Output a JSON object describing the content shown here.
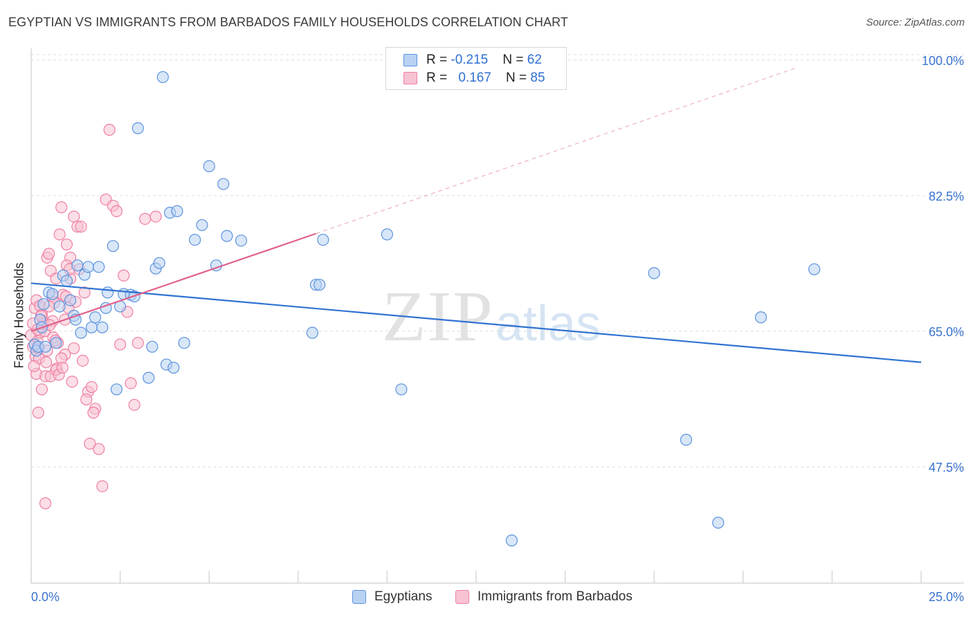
{
  "title": "EGYPTIAN VS IMMIGRANTS FROM BARBADOS FAMILY HOUSEHOLDS CORRELATION CHART",
  "source": "Source: ZipAtlas.com",
  "watermark": {
    "zip": "ZIP",
    "atlas": "atlas"
  },
  "legend_top": {
    "row1": {
      "r_label": "R = ",
      "r_value": "-0.215",
      "n_label": "N = ",
      "n_value": "62"
    },
    "row2": {
      "r_label": "R = ",
      "r_value": "0.167",
      "n_label": "N = ",
      "n_value": "85"
    }
  },
  "colors": {
    "blue_fill": "#b8d2f2",
    "blue_stroke": "#5b93dd",
    "blue_line": "#2f72d2",
    "pink_fill": "#f7c3d2",
    "pink_stroke": "#ee7fa2",
    "pink_line": "#e0608c",
    "axis_text": "#3a73cf",
    "grid": "#dcdcdc"
  },
  "chart_data": {
    "type": "scatter",
    "title": "EGYPTIAN VS IMMIGRANTS FROM BARBADOS FAMILY HOUSEHOLDS CORRELATION CHART",
    "xlabel": "",
    "ylabel": "Family Households",
    "xlim": [
      0,
      25
    ],
    "ylim": [
      32.5,
      101.5
    ],
    "x_tick_labels": [
      "0.0%",
      "25.0%"
    ],
    "y_ticks": [
      47.5,
      65.0,
      82.5,
      100.0
    ],
    "y_tick_labels": [
      "47.5%",
      "65.0%",
      "82.5%",
      "100.0%"
    ],
    "legend": [
      "Egyptians",
      "Immigrants from Barbados"
    ],
    "series": [
      {
        "name": "Egyptians",
        "R": -0.215,
        "N": 62,
        "trend": {
          "x": [
            0,
            25
          ],
          "y": [
            71.2,
            61.0
          ]
        },
        "points": [
          [
            0.1,
            63.3
          ],
          [
            0.15,
            62.5
          ],
          [
            0.2,
            63.0
          ],
          [
            0.25,
            66.5
          ],
          [
            0.3,
            65.5
          ],
          [
            0.35,
            68.5
          ],
          [
            0.5,
            70.0
          ],
          [
            0.6,
            69.8
          ],
          [
            0.7,
            63.5
          ],
          [
            0.8,
            68.2
          ],
          [
            0.9,
            72.2
          ],
          [
            1.0,
            71.5
          ],
          [
            1.1,
            69.0
          ],
          [
            1.2,
            67.0
          ],
          [
            1.3,
            73.5
          ],
          [
            1.4,
            64.8
          ],
          [
            1.5,
            72.3
          ],
          [
            1.6,
            73.3
          ],
          [
            1.7,
            65.5
          ],
          [
            1.8,
            66.8
          ],
          [
            1.9,
            73.3
          ],
          [
            2.0,
            65.5
          ],
          [
            2.1,
            68.0
          ],
          [
            2.15,
            70.0
          ],
          [
            2.3,
            76.0
          ],
          [
            2.4,
            57.5
          ],
          [
            2.5,
            68.2
          ],
          [
            2.6,
            69.8
          ],
          [
            2.8,
            69.7
          ],
          [
            2.9,
            69.5
          ],
          [
            3.0,
            91.2
          ],
          [
            3.3,
            59.0
          ],
          [
            3.4,
            63.0
          ],
          [
            3.5,
            73.1
          ],
          [
            3.6,
            73.8
          ],
          [
            3.7,
            97.8
          ],
          [
            3.8,
            60.7
          ],
          [
            3.9,
            80.3
          ],
          [
            4.0,
            60.3
          ],
          [
            4.1,
            80.5
          ],
          [
            4.3,
            63.5
          ],
          [
            4.6,
            76.8
          ],
          [
            4.8,
            78.7
          ],
          [
            5.0,
            86.3
          ],
          [
            5.2,
            73.5
          ],
          [
            5.4,
            84.0
          ],
          [
            5.5,
            77.3
          ],
          [
            5.9,
            76.7
          ],
          [
            7.9,
            64.8
          ],
          [
            8.0,
            71.0
          ],
          [
            8.1,
            71.0
          ],
          [
            8.2,
            76.8
          ],
          [
            10.0,
            77.5
          ],
          [
            10.4,
            57.5
          ],
          [
            13.5,
            38.0
          ],
          [
            17.5,
            72.5
          ],
          [
            18.4,
            51.0
          ],
          [
            19.3,
            40.3
          ],
          [
            20.5,
            66.8
          ],
          [
            22.0,
            73.0
          ],
          [
            0.4,
            63.0
          ],
          [
            1.25,
            66.5
          ]
        ]
      },
      {
        "name": "Immigrants from Barbados",
        "R": 0.167,
        "N": 85,
        "trend": {
          "x": [
            0,
            8
          ],
          "y": [
            65.0,
            77.6
          ]
        },
        "trend_extension": {
          "x": [
            8,
            21.5
          ],
          "y": [
            77.6,
            99.0
          ]
        },
        "points": [
          [
            0.0,
            64.5
          ],
          [
            0.05,
            66.0
          ],
          [
            0.1,
            68.0
          ],
          [
            0.12,
            61.8
          ],
          [
            0.15,
            59.5
          ],
          [
            0.18,
            63.7
          ],
          [
            0.2,
            62.8
          ],
          [
            0.22,
            61.5
          ],
          [
            0.25,
            64.8
          ],
          [
            0.3,
            67.2
          ],
          [
            0.35,
            66.3
          ],
          [
            0.38,
            65.0
          ],
          [
            0.4,
            59.2
          ],
          [
            0.45,
            74.5
          ],
          [
            0.5,
            75.0
          ],
          [
            0.55,
            72.8
          ],
          [
            0.6,
            69.5
          ],
          [
            0.65,
            68.7
          ],
          [
            0.7,
            71.8
          ],
          [
            0.72,
            60.2
          ],
          [
            0.75,
            63.5
          ],
          [
            0.8,
            77.5
          ],
          [
            0.85,
            81.0
          ],
          [
            0.9,
            69.7
          ],
          [
            0.95,
            62.0
          ],
          [
            1.0,
            76.2
          ],
          [
            1.05,
            68.0
          ],
          [
            1.1,
            74.5
          ],
          [
            1.15,
            58.5
          ],
          [
            1.2,
            79.8
          ],
          [
            1.3,
            78.5
          ],
          [
            1.4,
            78.5
          ],
          [
            1.5,
            70.0
          ],
          [
            1.6,
            57.2
          ],
          [
            1.7,
            57.8
          ],
          [
            1.8,
            55.0
          ],
          [
            1.9,
            49.8
          ],
          [
            2.0,
            45.0
          ],
          [
            2.1,
            82.0
          ],
          [
            2.2,
            91.0
          ],
          [
            2.3,
            81.2
          ],
          [
            2.4,
            80.5
          ],
          [
            2.5,
            63.3
          ],
          [
            2.6,
            72.2
          ],
          [
            2.7,
            67.5
          ],
          [
            2.8,
            58.3
          ],
          [
            2.9,
            55.5
          ],
          [
            3.0,
            63.5
          ],
          [
            3.2,
            79.5
          ],
          [
            3.5,
            79.8
          ],
          [
            0.08,
            60.5
          ],
          [
            0.15,
            69.0
          ],
          [
            0.25,
            68.3
          ],
          [
            0.35,
            66.0
          ],
          [
            0.45,
            62.5
          ],
          [
            0.55,
            59.2
          ],
          [
            0.62,
            64.2
          ],
          [
            0.7,
            60.0
          ],
          [
            0.85,
            61.5
          ],
          [
            0.95,
            66.5
          ],
          [
            1.0,
            73.5
          ],
          [
            1.1,
            71.8
          ],
          [
            1.2,
            62.8
          ],
          [
            1.25,
            68.8
          ],
          [
            1.35,
            73.0
          ],
          [
            1.45,
            61.2
          ],
          [
            1.55,
            56.2
          ],
          [
            1.65,
            50.5
          ],
          [
            1.75,
            54.5
          ],
          [
            0.1,
            63.2
          ],
          [
            0.2,
            54.5
          ],
          [
            0.3,
            57.5
          ],
          [
            0.4,
            42.8
          ],
          [
            0.5,
            68.2
          ],
          [
            0.6,
            66.3
          ],
          [
            0.68,
            63.8
          ],
          [
            0.78,
            59.4
          ],
          [
            0.88,
            60.3
          ],
          [
            0.98,
            69.5
          ],
          [
            1.08,
            73.0
          ],
          [
            0.05,
            63.0
          ],
          [
            0.18,
            65.2
          ],
          [
            0.28,
            67.0
          ],
          [
            0.42,
            61.0
          ],
          [
            0.52,
            65.8
          ]
        ]
      }
    ]
  }
}
